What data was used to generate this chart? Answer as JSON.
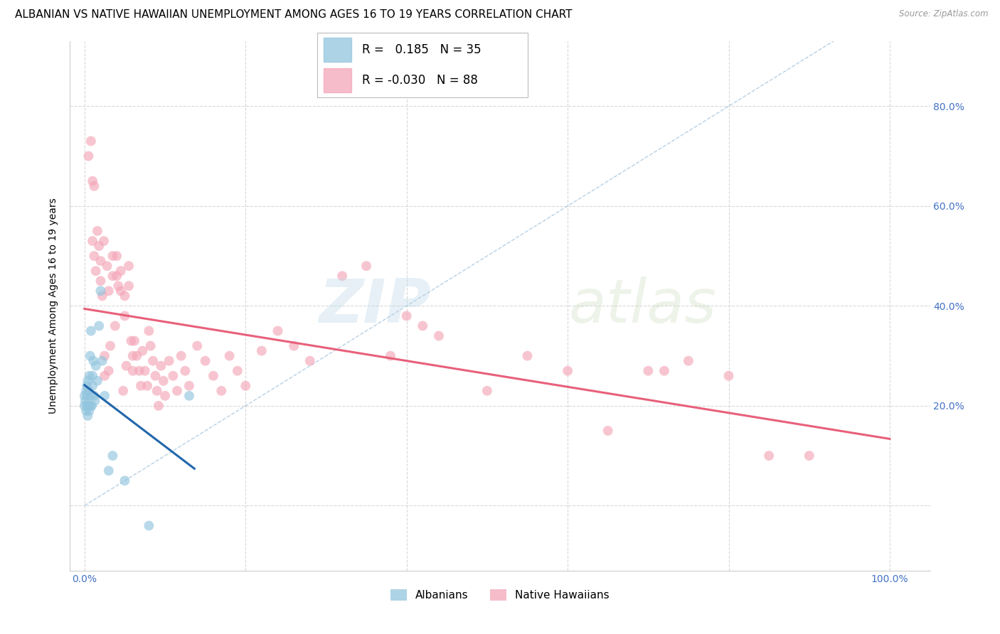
{
  "title": "ALBANIAN VS NATIVE HAWAIIAN UNEMPLOYMENT AMONG AGES 16 TO 19 YEARS CORRELATION CHART",
  "source": "Source: ZipAtlas.com",
  "ylabel": "Unemployment Among Ages 16 to 19 years",
  "xlim": [
    -0.018,
    1.05
  ],
  "ylim": [
    -0.13,
    0.93
  ],
  "blue_color": "#92c5de",
  "pink_color": "#f4a6b8",
  "trend_blue": "#2166ac",
  "trend_pink": "#e8607a",
  "diagonal_color": "#aac8e0",
  "legend_r_blue": "0.185",
  "legend_n_blue": "35",
  "legend_r_pink": "-0.030",
  "legend_n_pink": "88",
  "watermark_zip": "ZIP",
  "watermark_atlas": "atlas",
  "right_tick_color": "#4472c4",
  "grid_color": "#d8d8d8",
  "title_fontsize": 11,
  "tick_fontsize": 10,
  "ylabel_fontsize": 10
}
